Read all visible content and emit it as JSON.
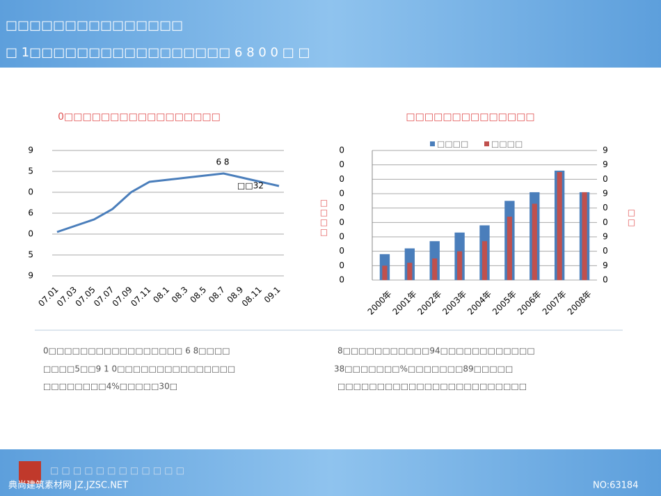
{
  "header": {
    "title": "□□□□□□□□□□□□□□□",
    "subtitle": "□ 1□□□□□□□□□□□□□□□□□ 6 8 0 0 □ □"
  },
  "chart_data": [
    {
      "type": "line",
      "title": "0□□□□□□□□□□□□□□□□□",
      "color": "#4a7ebb",
      "categories": [
        "07.01",
        "07.03",
        "07.05",
        "07.07",
        "07.09",
        "07.11",
        "08.1",
        "08.3",
        "08.5",
        "08.7",
        "08.9",
        "08.11",
        "09.1"
      ],
      "values": [
        2.1,
        2.4,
        2.7,
        3.2,
        4.0,
        4.5,
        4.6,
        4.7,
        4.8,
        4.9,
        4.7,
        4.5,
        4.3
      ],
      "ylim": [
        0,
        6
      ],
      "yticks": [
        {
          "value": 0,
          "label": "9"
        },
        {
          "value": 1,
          "label": "5"
        },
        {
          "value": 2,
          "label": "0"
        },
        {
          "value": 3,
          "label": "6"
        },
        {
          "value": 4,
          "label": "0"
        },
        {
          "value": 5,
          "label": "5"
        },
        {
          "value": 6,
          "label": "9"
        }
      ],
      "grid": true,
      "annotations": [
        "6 8",
        "□□32"
      ]
    },
    {
      "type": "bar",
      "title": "□□□□□□□□□□□□□□",
      "categories": [
        "2000年",
        "2001年",
        "2002年",
        "2003年",
        "2004年",
        "2005年",
        "2006年",
        "2007年",
        "2008年"
      ],
      "series": [
        {
          "name": "□□□□",
          "color": "#4a7ebb",
          "values": [
            1.8,
            2.2,
            2.7,
            3.3,
            3.8,
            5.5,
            6.1,
            7.6,
            6.1
          ]
        },
        {
          "name": "□□□□",
          "color": "#c0504d",
          "axis": "y2",
          "values": [
            1.0,
            1.2,
            1.5,
            2.0,
            2.7,
            4.4,
            5.3,
            7.5,
            6.1
          ]
        }
      ],
      "ylim": [
        0,
        9
      ],
      "yticks": [
        0,
        {
          "value": 1,
          "label": "0"
        },
        {
          "value": 2,
          "label": "0"
        },
        {
          "value": 3,
          "label": "0"
        },
        {
          "value": 4,
          "label": "0"
        },
        {
          "value": 5,
          "label": "0"
        },
        {
          "value": 6,
          "label": "0"
        },
        {
          "value": 7,
          "label": "0"
        },
        {
          "value": 8,
          "label": "0"
        },
        {
          "value": 9,
          "label": "0"
        }
      ],
      "y2lim": [
        0,
        9
      ],
      "y2ticks": [
        0,
        {
          "value": 1,
          "label": "9"
        },
        {
          "value": 2,
          "label": "0"
        },
        {
          "value": 3,
          "label": "9"
        },
        {
          "value": 4,
          "label": "0"
        },
        {
          "value": 5,
          "label": "0"
        },
        {
          "value": 6,
          "label": "9"
        },
        {
          "value": 7,
          "label": "0"
        },
        {
          "value": 8,
          "label": "9"
        },
        {
          "value": 9,
          "label": "9"
        }
      ],
      "grid": true,
      "legend": "top",
      "ylabel": "□□□□",
      "y2label": "□□"
    }
  ],
  "notes": {
    "left": [
      "0□□□□□□□□□□□□□□□□□ 6 8□□□□",
      "□□□□5□□9 1 0□□□□□□□□□□□□□□□",
      "□□□□□□□□4%□□□□□30□"
    ],
    "right": [
      "8□□□□□□□□□□□94□□□□□□□□□□□□",
      "38□□□□□□□%□□□□□□□89□□□□□",
      "□□□□□□□□□□□□□□□□□□□□□□□□"
    ]
  },
  "footer": {
    "brand": "典尚建筑素材网 JZ.JZSC.NET",
    "code": "NO:63184",
    "company": "□ □ □ □ □ □ □ □ □ □ □ □"
  }
}
